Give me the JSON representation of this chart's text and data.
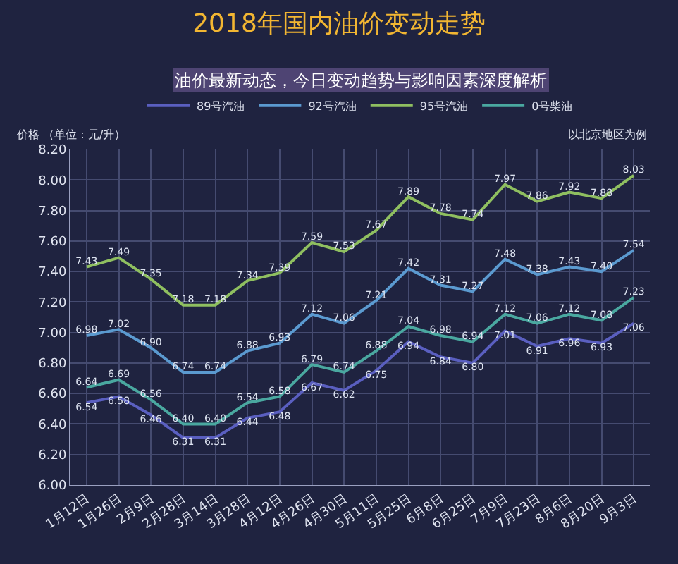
{
  "chart_data": {
    "type": "line",
    "title": "2018年国内油价变动走势",
    "subtitle": "油价最新动态，今日变动趋势与影响因素深度解析",
    "ylabel": "价格 （单位：元/升）",
    "annotations": [
      "以北京地区为例"
    ],
    "categories": [
      "1月12日",
      "1月26日",
      "2月9日",
      "2月28日",
      "3月14日",
      "3月28日",
      "4月12日",
      "4月26日",
      "4月30日",
      "5月11日",
      "5月25日",
      "6月8日",
      "6月25日",
      "7月9日",
      "7月23日",
      "8月6日",
      "8月20日",
      "9月3日"
    ],
    "series": [
      {
        "name": "89号汽油",
        "color": "#5a5fc0",
        "values": [
          6.54,
          6.58,
          6.46,
          6.31,
          6.31,
          6.44,
          6.48,
          6.67,
          6.62,
          6.75,
          6.94,
          6.84,
          6.8,
          7.01,
          6.91,
          6.96,
          6.93,
          7.06
        ],
        "value_labels": [
          "6.54",
          "6.58",
          "6.46",
          "6.31",
          "6.31",
          "6.44",
          "6.48",
          "6.67",
          "6.62",
          "6.75",
          "6.94",
          "6.84",
          "6.80",
          "7.01",
          "6.91",
          "6.96",
          "6.93",
          "7.06"
        ]
      },
      {
        "name": "92号汽油",
        "color": "#5b9ad0",
        "values": [
          6.98,
          7.02,
          6.9,
          6.74,
          6.74,
          6.88,
          6.93,
          7.12,
          7.06,
          7.21,
          7.42,
          7.31,
          7.27,
          7.48,
          7.38,
          7.43,
          7.4,
          7.54
        ],
        "value_labels": [
          "6.98",
          "7.02",
          "6.90",
          "6.74",
          "6.74",
          "6.88",
          "6.93",
          "7.12",
          "7.06",
          "7.21",
          "7.42",
          "7.31",
          "7.27",
          "7.48",
          "7.38",
          "7.43",
          "7.40",
          "7.54"
        ]
      },
      {
        "name": "95号汽油",
        "color": "#8fbf60",
        "values": [
          7.43,
          7.49,
          7.35,
          7.18,
          7.18,
          7.34,
          7.39,
          7.59,
          7.53,
          7.67,
          7.89,
          7.78,
          7.74,
          7.97,
          7.86,
          7.92,
          7.88,
          8.03
        ],
        "value_labels": [
          "7.43",
          "7.49",
          "7.35",
          "7.18",
          "7.18",
          "7.34",
          "7.39",
          "7.59",
          "7.53",
          "7.67",
          "7.89",
          "7.78",
          "7.74",
          "7.97",
          "7.86",
          "7.92",
          "7.88",
          "8.03"
        ]
      },
      {
        "name": "0号柴油",
        "color": "#4aa8a0",
        "values": [
          6.64,
          6.69,
          6.56,
          6.4,
          6.4,
          6.54,
          6.58,
          6.79,
          6.74,
          6.88,
          7.04,
          6.98,
          6.94,
          7.12,
          7.06,
          7.12,
          7.08,
          7.23
        ],
        "value_labels": [
          "6.64",
          "6.69",
          "6.56",
          "6.40",
          "6.40",
          "6.54",
          "6.58",
          "6.79",
          "6.74",
          "6.88",
          "7.04",
          "6.98",
          "6.94",
          "7.12",
          "7.06",
          "7.12",
          "7.08",
          "7.23"
        ]
      }
    ],
    "ylim": [
      6.0,
      8.2
    ],
    "yticks": [
      {
        "value": 6.0,
        "label": "6.00"
      },
      {
        "value": 6.2,
        "label": "6.20"
      },
      {
        "value": 6.4,
        "label": "6.40"
      },
      {
        "value": 6.6,
        "label": "6.60"
      },
      {
        "value": 6.8,
        "label": "6.80"
      },
      {
        "value": 7.0,
        "label": "7.00"
      },
      {
        "value": 7.2,
        "label": "7.20"
      },
      {
        "value": 7.4,
        "label": "7.40"
      },
      {
        "value": 7.6,
        "label": "7.60"
      },
      {
        "value": 7.8,
        "label": "7.80"
      },
      {
        "value": 8.0,
        "label": "8.00"
      },
      {
        "value": 8.2,
        "label": "8.20"
      }
    ],
    "grid": true,
    "legend": "top",
    "marker": "none",
    "line_style": "solid"
  }
}
